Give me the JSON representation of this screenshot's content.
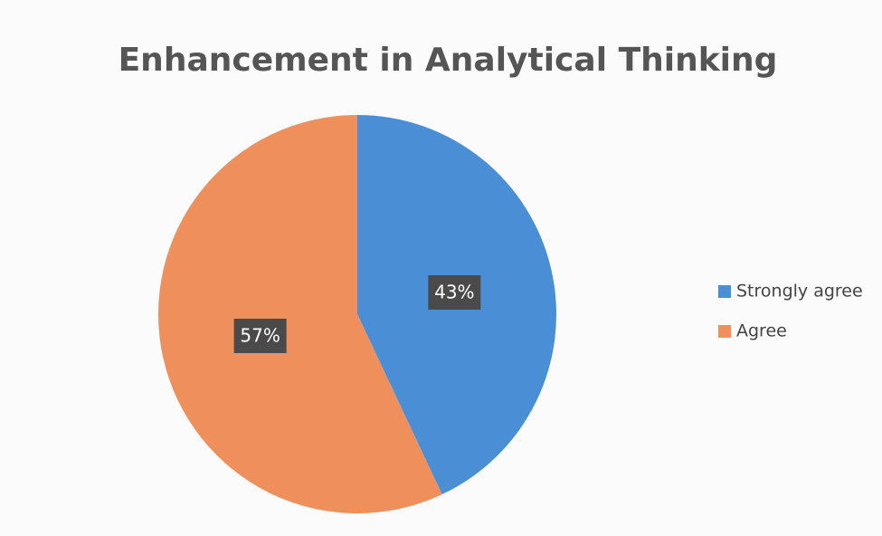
{
  "chart_data": {
    "type": "pie",
    "title": "Enhancement in Analytical Thinking",
    "categories": [
      "Strongly agree",
      "Agree"
    ],
    "values": [
      43,
      57
    ],
    "value_labels": [
      "43%",
      "57%"
    ],
    "colors": [
      "#4a8fd6",
      "#ef8f5c"
    ],
    "legend": "right"
  }
}
